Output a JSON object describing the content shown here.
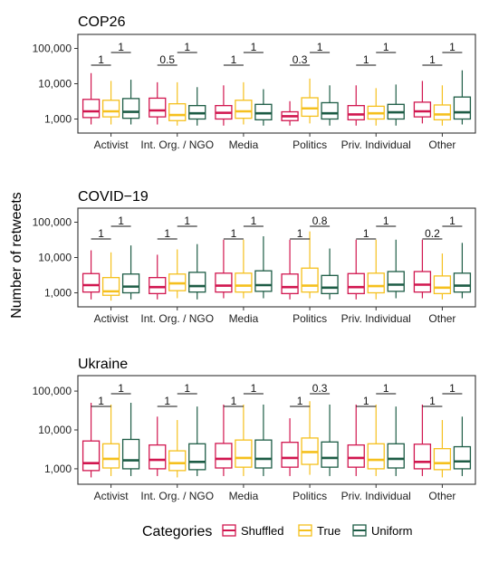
{
  "ylabel": "Number of retweets",
  "legend": {
    "title": "Categories",
    "placement": "bottom",
    "entries": [
      {
        "name": "Shuffled",
        "color": "#d1164f"
      },
      {
        "name": "True",
        "color": "#f5c01d"
      },
      {
        "name": "Uniform",
        "color": "#1d5c45"
      }
    ]
  },
  "chart_data": [
    {
      "type": "box",
      "title": "COP26",
      "scale": "log10",
      "ylim": [
        400,
        250000
      ],
      "yticks": [
        1000,
        10000,
        100000
      ],
      "ytick_labels": [
        "1,000",
        "10,000",
        "100,000"
      ],
      "grid": false,
      "categories": [
        "Activist",
        "Int. Org. / NGO",
        "Media",
        "Politics",
        "Priv. Individual",
        "Other"
      ],
      "series": [
        {
          "name": "Shuffled",
          "boxes": [
            {
              "min": 700,
              "q1": 1100,
              "median": 1650,
              "q3": 3600,
              "max": 20000
            },
            {
              "min": 700,
              "q1": 1150,
              "median": 1750,
              "q3": 3900,
              "max": 11000
            },
            {
              "min": 650,
              "q1": 1000,
              "median": 1500,
              "q3": 2400,
              "max": 9000
            },
            {
              "min": 650,
              "q1": 900,
              "median": 1200,
              "q3": 1600,
              "max": 3200
            },
            {
              "min": 650,
              "q1": 950,
              "median": 1350,
              "q3": 2400,
              "max": 9000
            },
            {
              "min": 750,
              "q1": 1150,
              "median": 1650,
              "q3": 3000,
              "max": 12000
            }
          ]
        },
        {
          "name": "True",
          "boxes": [
            {
              "min": 700,
              "q1": 1150,
              "median": 1650,
              "q3": 3400,
              "max": 12000
            },
            {
              "min": 650,
              "q1": 900,
              "median": 1300,
              "q3": 2700,
              "max": 11000
            },
            {
              "min": 700,
              "q1": 1050,
              "median": 1650,
              "q3": 3400,
              "max": 11000
            },
            {
              "min": 750,
              "q1": 1200,
              "median": 2000,
              "q3": 4000,
              "max": 14000
            },
            {
              "min": 650,
              "q1": 1000,
              "median": 1450,
              "q3": 2300,
              "max": 7500
            },
            {
              "min": 650,
              "q1": 950,
              "median": 1350,
              "q3": 2500,
              "max": 9000
            }
          ]
        },
        {
          "name": "Uniform",
          "boxes": [
            {
              "min": 700,
              "q1": 1050,
              "median": 1600,
              "q3": 3800,
              "max": 13000
            },
            {
              "min": 650,
              "q1": 1000,
              "median": 1450,
              "q3": 2400,
              "max": 8000
            },
            {
              "min": 650,
              "q1": 950,
              "median": 1450,
              "q3": 2600,
              "max": 7000
            },
            {
              "min": 650,
              "q1": 1000,
              "median": 1450,
              "q3": 2900,
              "max": 9000
            },
            {
              "min": 650,
              "q1": 1000,
              "median": 1550,
              "q3": 2600,
              "max": 9500
            },
            {
              "min": 700,
              "q1": 1000,
              "median": 1550,
              "q3": 4200,
              "max": 24000
            }
          ]
        }
      ],
      "annotations": [
        {
          "category": "Activist",
          "pair": [
            "Shuffled",
            "True"
          ],
          "label": "1"
        },
        {
          "category": "Activist",
          "pair": [
            "True",
            "Uniform"
          ],
          "label": "1"
        },
        {
          "category": "Int. Org. / NGO",
          "pair": [
            "Shuffled",
            "True"
          ],
          "label": "0.5"
        },
        {
          "category": "Int. Org. / NGO",
          "pair": [
            "True",
            "Uniform"
          ],
          "label": "1"
        },
        {
          "category": "Media",
          "pair": [
            "Shuffled",
            "True"
          ],
          "label": "1"
        },
        {
          "category": "Media",
          "pair": [
            "True",
            "Uniform"
          ],
          "label": "1"
        },
        {
          "category": "Politics",
          "pair": [
            "Shuffled",
            "True"
          ],
          "label": "0.3"
        },
        {
          "category": "Politics",
          "pair": [
            "True",
            "Uniform"
          ],
          "label": "1"
        },
        {
          "category": "Priv. Individual",
          "pair": [
            "Shuffled",
            "True"
          ],
          "label": "1"
        },
        {
          "category": "Priv. Individual",
          "pair": [
            "True",
            "Uniform"
          ],
          "label": "1"
        },
        {
          "category": "Other",
          "pair": [
            "Shuffled",
            "True"
          ],
          "label": "1"
        },
        {
          "category": "Other",
          "pair": [
            "True",
            "Uniform"
          ],
          "label": "1"
        }
      ]
    },
    {
      "type": "box",
      "title": "COVID−19",
      "scale": "log10",
      "ylim": [
        400,
        250000
      ],
      "yticks": [
        1000,
        10000,
        100000
      ],
      "ytick_labels": [
        "1,000",
        "10,000",
        "100,000"
      ],
      "grid": false,
      "categories": [
        "Activist",
        "Int. Org. / NGO",
        "Media",
        "Politics",
        "Priv. Individual",
        "Other"
      ],
      "series": [
        {
          "name": "Shuffled",
          "boxes": [
            {
              "min": 650,
              "q1": 1050,
              "median": 1650,
              "q3": 3500,
              "max": 16000
            },
            {
              "min": 650,
              "q1": 950,
              "median": 1450,
              "q3": 2700,
              "max": 12000
            },
            {
              "min": 700,
              "q1": 1050,
              "median": 1600,
              "q3": 3600,
              "max": 32000
            },
            {
              "min": 650,
              "q1": 950,
              "median": 1450,
              "q3": 3400,
              "max": 32000
            },
            {
              "min": 650,
              "q1": 950,
              "median": 1450,
              "q3": 3500,
              "max": 32000
            },
            {
              "min": 700,
              "q1": 1050,
              "median": 1700,
              "q3": 4000,
              "max": 32000
            }
          ]
        },
        {
          "name": "True",
          "boxes": [
            {
              "min": 600,
              "q1": 850,
              "median": 1100,
              "q3": 2700,
              "max": 14000
            },
            {
              "min": 700,
              "q1": 1150,
              "median": 1850,
              "q3": 3400,
              "max": 17000
            },
            {
              "min": 700,
              "q1": 1050,
              "median": 1600,
              "q3": 3600,
              "max": 32000
            },
            {
              "min": 700,
              "q1": 1050,
              "median": 1600,
              "q3": 5000,
              "max": 55000
            },
            {
              "min": 650,
              "q1": 1000,
              "median": 1550,
              "q3": 3600,
              "max": 32000
            },
            {
              "min": 650,
              "q1": 950,
              "median": 1400,
              "q3": 3000,
              "max": 13000
            }
          ]
        },
        {
          "name": "Uniform",
          "boxes": [
            {
              "min": 650,
              "q1": 1000,
              "median": 1500,
              "q3": 3400,
              "max": 22000
            },
            {
              "min": 650,
              "q1": 1050,
              "median": 1550,
              "q3": 3800,
              "max": 24000
            },
            {
              "min": 700,
              "q1": 1100,
              "median": 1650,
              "q3": 4200,
              "max": 40000
            },
            {
              "min": 650,
              "q1": 950,
              "median": 1400,
              "q3": 3100,
              "max": 18000
            },
            {
              "min": 700,
              "q1": 1100,
              "median": 1700,
              "q3": 4000,
              "max": 32000
            },
            {
              "min": 700,
              "q1": 1050,
              "median": 1600,
              "q3": 3600,
              "max": 26000
            }
          ]
        }
      ],
      "annotations": [
        {
          "category": "Activist",
          "pair": [
            "Shuffled",
            "True"
          ],
          "label": "1"
        },
        {
          "category": "Activist",
          "pair": [
            "True",
            "Uniform"
          ],
          "label": "1"
        },
        {
          "category": "Int. Org. / NGO",
          "pair": [
            "Shuffled",
            "True"
          ],
          "label": "1"
        },
        {
          "category": "Int. Org. / NGO",
          "pair": [
            "True",
            "Uniform"
          ],
          "label": "1"
        },
        {
          "category": "Media",
          "pair": [
            "Shuffled",
            "True"
          ],
          "label": "1"
        },
        {
          "category": "Media",
          "pair": [
            "True",
            "Uniform"
          ],
          "label": "1"
        },
        {
          "category": "Politics",
          "pair": [
            "Shuffled",
            "True"
          ],
          "label": "1"
        },
        {
          "category": "Politics",
          "pair": [
            "True",
            "Uniform"
          ],
          "label": "0.8"
        },
        {
          "category": "Priv. Individual",
          "pair": [
            "Shuffled",
            "True"
          ],
          "label": "1"
        },
        {
          "category": "Priv. Individual",
          "pair": [
            "True",
            "Uniform"
          ],
          "label": "1"
        },
        {
          "category": "Other",
          "pair": [
            "Shuffled",
            "True"
          ],
          "label": "0.2"
        },
        {
          "category": "Other",
          "pair": [
            "True",
            "Uniform"
          ],
          "label": "1"
        }
      ]
    },
    {
      "type": "box",
      "title": "Ukraine",
      "scale": "log10",
      "ylim": [
        400,
        250000
      ],
      "yticks": [
        1000,
        10000,
        100000
      ],
      "ytick_labels": [
        "1,000",
        "10,000",
        "100,000"
      ],
      "grid": false,
      "categories": [
        "Activist",
        "Int. Org. / NGO",
        "Media",
        "Politics",
        "Priv. Individual",
        "Other"
      ],
      "series": [
        {
          "name": "Shuffled",
          "boxes": [
            {
              "min": 600,
              "q1": 900,
              "median": 1400,
              "q3": 5200,
              "max": 50000
            },
            {
              "min": 650,
              "q1": 1000,
              "median": 1700,
              "q3": 4100,
              "max": 22000
            },
            {
              "min": 650,
              "q1": 1050,
              "median": 1800,
              "q3": 4500,
              "max": 45000
            },
            {
              "min": 650,
              "q1": 1100,
              "median": 1900,
              "q3": 4800,
              "max": 20000
            },
            {
              "min": 650,
              "q1": 1100,
              "median": 1900,
              "q3": 4100,
              "max": 45000
            },
            {
              "min": 650,
              "q1": 1000,
              "median": 1500,
              "q3": 4300,
              "max": 45000
            }
          ]
        },
        {
          "name": "True",
          "boxes": [
            {
              "min": 650,
              "q1": 1050,
              "median": 1800,
              "q3": 4400,
              "max": 45000
            },
            {
              "min": 600,
              "q1": 900,
              "median": 1400,
              "q3": 2900,
              "max": 18000
            },
            {
              "min": 650,
              "q1": 1100,
              "median": 1900,
              "q3": 5500,
              "max": 45000
            },
            {
              "min": 700,
              "q1": 1300,
              "median": 2700,
              "q3": 6200,
              "max": 55000
            },
            {
              "min": 650,
              "q1": 1000,
              "median": 1700,
              "q3": 4400,
              "max": 45000
            },
            {
              "min": 600,
              "q1": 950,
              "median": 1400,
              "q3": 3300,
              "max": 18000
            }
          ]
        },
        {
          "name": "Uniform",
          "boxes": [
            {
              "min": 650,
              "q1": 1000,
              "median": 1650,
              "q3": 5700,
              "max": 50000
            },
            {
              "min": 650,
              "q1": 950,
              "median": 1500,
              "q3": 4400,
              "max": 40000
            },
            {
              "min": 650,
              "q1": 1050,
              "median": 1800,
              "q3": 5500,
              "max": 45000
            },
            {
              "min": 650,
              "q1": 1100,
              "median": 1900,
              "q3": 4900,
              "max": 45000
            },
            {
              "min": 650,
              "q1": 1050,
              "median": 1800,
              "q3": 4400,
              "max": 40000
            },
            {
              "min": 650,
              "q1": 1000,
              "median": 1550,
              "q3": 3700,
              "max": 22000
            }
          ]
        }
      ],
      "annotations": [
        {
          "category": "Activist",
          "pair": [
            "Shuffled",
            "True"
          ],
          "label": "1"
        },
        {
          "category": "Activist",
          "pair": [
            "True",
            "Uniform"
          ],
          "label": "1"
        },
        {
          "category": "Int. Org. / NGO",
          "pair": [
            "Shuffled",
            "True"
          ],
          "label": "1"
        },
        {
          "category": "Int. Org. / NGO",
          "pair": [
            "True",
            "Uniform"
          ],
          "label": "1"
        },
        {
          "category": "Media",
          "pair": [
            "Shuffled",
            "True"
          ],
          "label": "1"
        },
        {
          "category": "Media",
          "pair": [
            "True",
            "Uniform"
          ],
          "label": "1"
        },
        {
          "category": "Politics",
          "pair": [
            "Shuffled",
            "True"
          ],
          "label": "1"
        },
        {
          "category": "Politics",
          "pair": [
            "True",
            "Uniform"
          ],
          "label": "0.3"
        },
        {
          "category": "Priv. Individual",
          "pair": [
            "Shuffled",
            "True"
          ],
          "label": "1"
        },
        {
          "category": "Priv. Individual",
          "pair": [
            "True",
            "Uniform"
          ],
          "label": "1"
        },
        {
          "category": "Other",
          "pair": [
            "Shuffled",
            "True"
          ],
          "label": "1"
        },
        {
          "category": "Other",
          "pair": [
            "True",
            "Uniform"
          ],
          "label": "1"
        }
      ]
    }
  ]
}
